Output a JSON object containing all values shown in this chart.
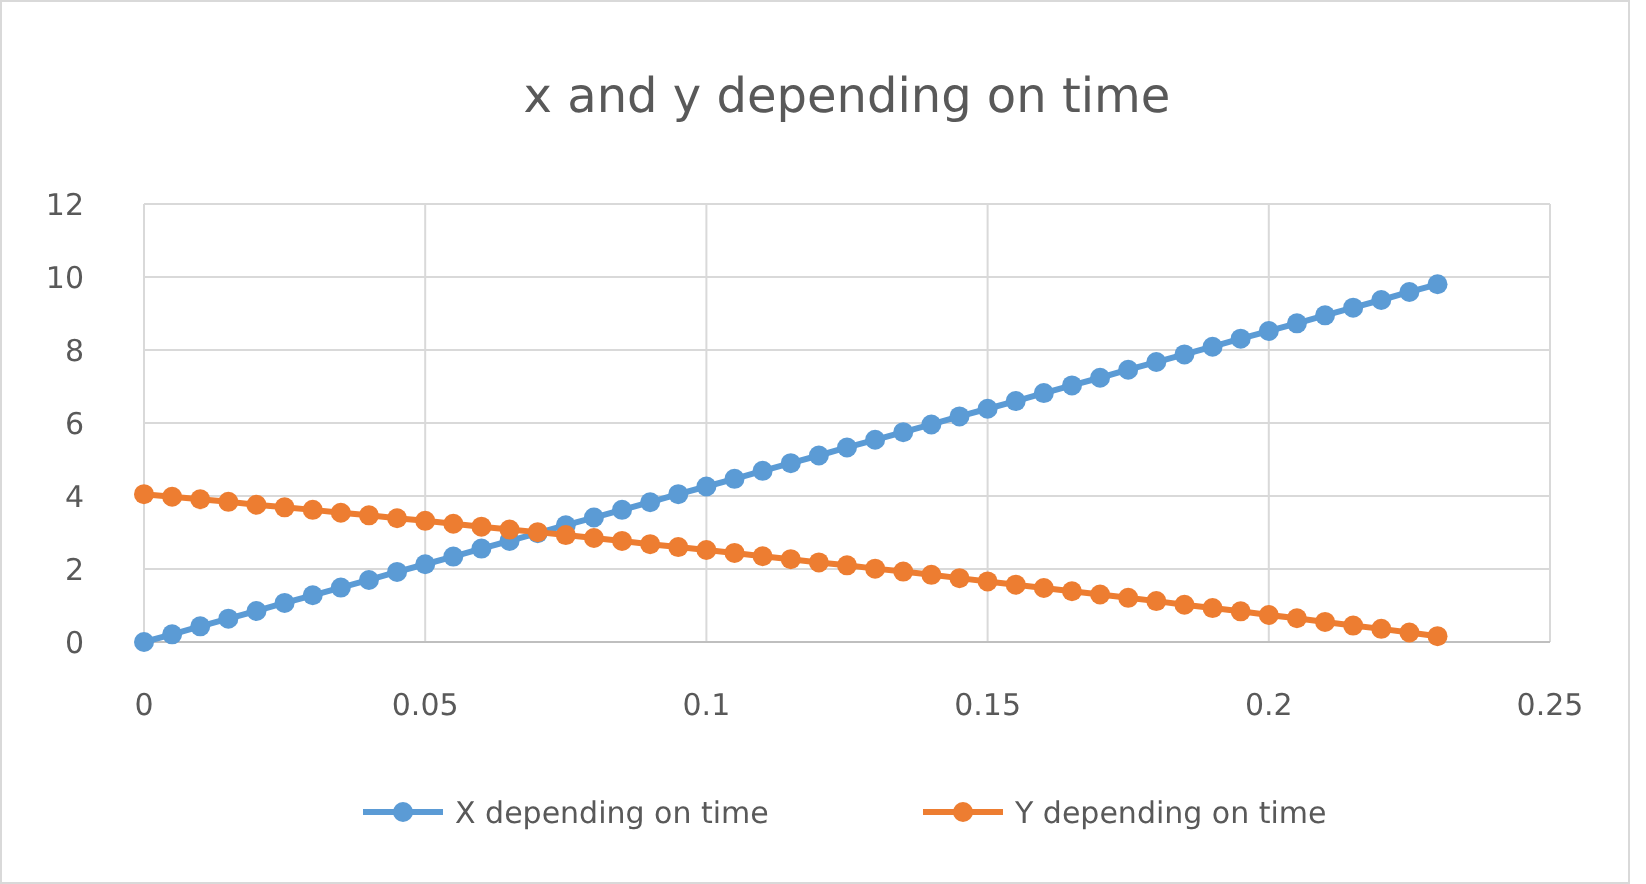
{
  "chart_data": {
    "type": "line",
    "title": "x and y depending on time",
    "x": [
      0,
      0.005,
      0.01,
      0.015,
      0.02,
      0.025,
      0.03,
      0.035,
      0.04,
      0.045,
      0.05,
      0.055,
      0.06,
      0.065,
      0.07,
      0.075,
      0.08,
      0.085,
      0.09,
      0.095,
      0.1,
      0.105,
      0.11,
      0.115,
      0.12,
      0.125,
      0.13,
      0.135,
      0.14,
      0.145,
      0.15,
      0.155,
      0.16,
      0.165,
      0.17,
      0.175,
      0.18,
      0.185,
      0.19,
      0.195,
      0.2,
      0.205,
      0.21,
      0.215,
      0.22,
      0.225,
      0.23
    ],
    "series": [
      {
        "name": "X depending on time",
        "color": "#5b9bd5",
        "values": [
          0,
          0.21,
          0.43,
          0.64,
          0.85,
          1.07,
          1.28,
          1.49,
          1.7,
          1.92,
          2.13,
          2.34,
          2.56,
          2.77,
          2.98,
          3.2,
          3.41,
          3.62,
          3.83,
          4.05,
          4.26,
          4.47,
          4.69,
          4.9,
          5.11,
          5.33,
          5.54,
          5.75,
          5.96,
          6.18,
          6.39,
          6.6,
          6.82,
          7.03,
          7.24,
          7.46,
          7.67,
          7.88,
          8.09,
          8.31,
          8.52,
          8.73,
          8.95,
          9.16,
          9.37,
          9.59,
          9.8
        ]
      },
      {
        "name": "Y depending on time",
        "color": "#ed7d31",
        "values": [
          4.05,
          3.98,
          3.91,
          3.84,
          3.76,
          3.69,
          3.62,
          3.54,
          3.47,
          3.39,
          3.32,
          3.24,
          3.16,
          3.08,
          3.01,
          2.93,
          2.85,
          2.77,
          2.68,
          2.6,
          2.52,
          2.44,
          2.35,
          2.27,
          2.18,
          2.1,
          2.01,
          1.93,
          1.84,
          1.75,
          1.66,
          1.57,
          1.48,
          1.39,
          1.3,
          1.21,
          1.12,
          1.02,
          0.93,
          0.84,
          0.74,
          0.65,
          0.55,
          0.45,
          0.36,
          0.26,
          0.16
        ]
      }
    ],
    "xlim": [
      0,
      0.25
    ],
    "xticks": [
      0,
      0.05,
      0.1,
      0.15,
      0.2,
      0.25
    ],
    "ylim": [
      0,
      12
    ],
    "yticks": [
      0,
      2,
      4,
      6,
      8,
      10,
      12
    ],
    "grid": true,
    "legend": "bottom",
    "marker": "circle",
    "line_style": "solid"
  }
}
